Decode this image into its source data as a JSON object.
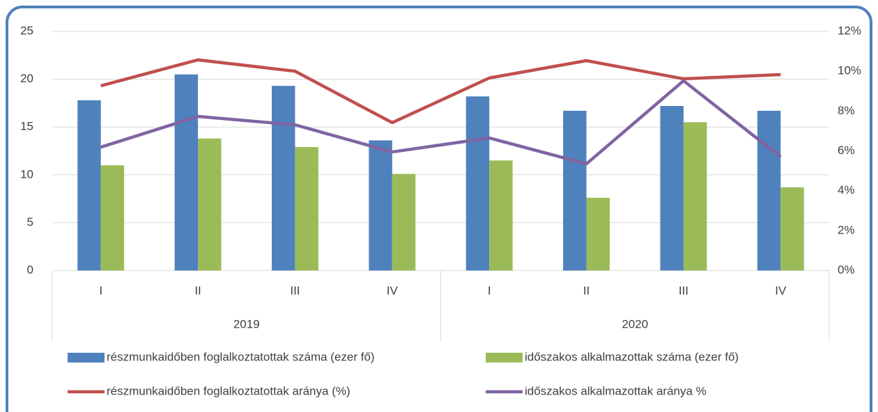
{
  "chart_data": {
    "type": "bar",
    "categories": [
      "I",
      "II",
      "III",
      "IV",
      "I",
      "II",
      "III",
      "IV"
    ],
    "category_groups": [
      "2019",
      "2020"
    ],
    "series": [
      {
        "name": "részmunkaidőben foglalkoztatottak száma (ezer fő)",
        "color": "#4f81bd",
        "values": [
          17.8,
          20.5,
          19.3,
          13.6,
          18.2,
          16.7,
          17.2,
          16.7
        ]
      },
      {
        "name": "időszakos alkalmazottak száma (ezer fő)",
        "color": "#9bbb59",
        "values": [
          11.0,
          13.8,
          12.9,
          10.1,
          11.5,
          7.6,
          15.5,
          8.7
        ]
      },
      {
        "name": "részmunkaidőben foglalkoztatottak aránya (%)",
        "color": "#c0504d",
        "type": "line",
        "axis": "y2",
        "values": [
          9.27,
          10.57,
          10.0,
          7.42,
          9.66,
          10.53,
          9.62,
          9.83
        ]
      },
      {
        "name": "időszakos alkalmazottak aránya %",
        "color": "#8064a2",
        "type": "line",
        "axis": "y2",
        "values": [
          6.19,
          7.73,
          7.31,
          5.95,
          6.65,
          5.35,
          9.52,
          5.7
        ]
      }
    ],
    "ylim": [
      0,
      25
    ],
    "yticks": [
      0,
      5,
      10,
      15,
      20,
      25
    ],
    "y2lim": [
      0,
      12
    ],
    "y2ticks": [
      {
        "value": 0,
        "label": "0%"
      },
      {
        "value": 2,
        "label": "2%"
      },
      {
        "value": 4,
        "label": "4%"
      },
      {
        "value": 6,
        "label": "6%"
      },
      {
        "value": 8,
        "label": "8%"
      },
      {
        "value": 10,
        "label": "10%"
      },
      {
        "value": 12,
        "label": "12%"
      }
    ],
    "grid": true,
    "legend": "bottom"
  }
}
